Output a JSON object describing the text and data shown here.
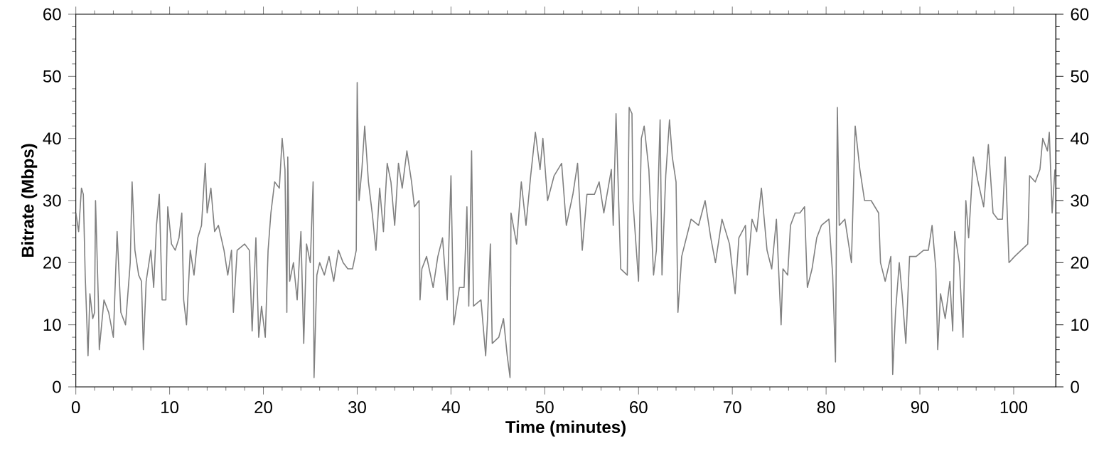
{
  "chart_data": {
    "type": "line",
    "xlabel": "Time (minutes)",
    "ylabel": "Bitrate (Mbps)",
    "xlim": [
      0,
      104.5
    ],
    "xticks": [
      0,
      10,
      20,
      30,
      40,
      50,
      60,
      70,
      80,
      90,
      100
    ],
    "ylim": [
      0,
      60
    ],
    "yticks": [
      0,
      10,
      20,
      30,
      40,
      50,
      60
    ],
    "y2lim": [
      0,
      60
    ],
    "y2ticks": [
      0,
      10,
      20,
      30,
      40,
      50,
      60
    ],
    "grid": false,
    "legend": false,
    "marker": "none",
    "line_style": "solid",
    "series": [
      {
        "color": "#808080",
        "x": [
          0,
          0.3,
          0.6,
          0.8,
          1.0,
          1.3,
          1.5,
          1.8,
          2.0,
          2.1,
          2.4,
          2.5,
          3.0,
          3.5,
          4.0,
          4.4,
          4.8,
          5.3,
          5.8,
          6.0,
          6.3,
          6.7,
          7.0,
          7.2,
          7.5,
          8.0,
          8.3,
          8.6,
          8.9,
          9.2,
          9.6,
          9.8,
          10.2,
          10.6,
          11.0,
          11.3,
          11.5,
          11.8,
          12.2,
          12.6,
          13.0,
          13.4,
          13.8,
          14.0,
          14.4,
          14.8,
          15.2,
          15.8,
          16.2,
          16.6,
          16.8,
          17.2,
          18.0,
          18.5,
          18.8,
          19.2,
          19.5,
          19.8,
          20.2,
          20.5,
          20.8,
          21.2,
          21.7,
          22.0,
          22.3,
          22.5,
          22.6,
          22.8,
          23.2,
          23.6,
          24.0,
          24.3,
          24.6,
          25.0,
          25.3,
          25.4,
          25.7,
          26.0,
          26.5,
          27.0,
          27.5,
          28.0,
          28.5,
          29.0,
          29.5,
          29.9,
          30.0,
          30.2,
          30.5,
          30.8,
          31.2,
          31.6,
          32.0,
          32.4,
          32.8,
          33.2,
          33.6,
          34.0,
          34.4,
          34.8,
          35.3,
          35.8,
          36.1,
          36.6,
          36.7,
          36.9,
          37.4,
          38.1,
          38.6,
          39.1,
          39.6,
          40.0,
          40.3,
          40.9,
          41.4,
          41.7,
          41.9,
          42.2,
          42.4,
          43.2,
          43.7,
          43.9,
          44.2,
          44.4,
          45.1,
          45.6,
          46.0,
          46.3,
          46.4,
          47.0,
          47.5,
          48.0,
          48.5,
          49.0,
          49.5,
          49.8,
          50.3,
          51.0,
          51.8,
          52.3,
          53.0,
          53.5,
          54.0,
          54.5,
          55.3,
          55.8,
          56.3,
          57.1,
          57.3,
          57.6,
          57.8,
          58.1,
          58.8,
          59.0,
          59.3,
          59.4,
          60.0,
          60.3,
          60.6,
          61.1,
          61.6,
          61.9,
          62.3,
          62.5,
          62.9,
          63.3,
          63.6,
          64.0,
          64.2,
          64.6,
          65.1,
          65.6,
          66.4,
          67.1,
          67.7,
          68.2,
          68.9,
          69.7,
          70.3,
          70.7,
          71.4,
          71.6,
          72.1,
          72.6,
          73.1,
          73.7,
          74.2,
          74.7,
          75.2,
          75.4,
          75.9,
          76.2,
          76.7,
          77.2,
          77.7,
          78.0,
          78.5,
          79.0,
          79.5,
          80.3,
          80.7,
          81.0,
          81.2,
          81.4,
          82.0,
          82.7,
          83.1,
          83.6,
          84.1,
          84.8,
          85.6,
          85.8,
          86.3,
          86.9,
          87.1,
          87.4,
          87.8,
          88.1,
          88.5,
          88.9,
          89.6,
          90.4,
          90.9,
          91.3,
          91.7,
          91.9,
          92.2,
          92.7,
          93.2,
          93.5,
          93.7,
          94.2,
          94.6,
          94.9,
          95.2,
          95.7,
          96.2,
          96.8,
          97.3,
          97.8,
          98.3,
          98.8,
          99.1,
          99.5,
          100.1,
          100.8,
          101.5,
          101.7,
          102.3,
          102.8,
          103.1,
          103.6,
          103.8,
          104.1,
          104.4
        ],
        "values": [
          28,
          25,
          32,
          31,
          18,
          5,
          15,
          11,
          12,
          30,
          14,
          6,
          14,
          12,
          8,
          25,
          12,
          10,
          20,
          33,
          22,
          18,
          17,
          6,
          17,
          22,
          16,
          26,
          31,
          14,
          14,
          29,
          23,
          22,
          24,
          28,
          14,
          10,
          22,
          18,
          24,
          26,
          36,
          28,
          32,
          25,
          26,
          22,
          18,
          22,
          12,
          22,
          23,
          22,
          9,
          24,
          8,
          13,
          8,
          22,
          28,
          33,
          32,
          40,
          35,
          12,
          37,
          17,
          20,
          14,
          25,
          7,
          23,
          20,
          33,
          1.5,
          18,
          20,
          18,
          21,
          17,
          22,
          20,
          19,
          19,
          22,
          49,
          30,
          35,
          42,
          33,
          28,
          22,
          32,
          25,
          36,
          33,
          26,
          36,
          32,
          38,
          33,
          29,
          30,
          14,
          19,
          21,
          16,
          21,
          24,
          14,
          34,
          10,
          16,
          16,
          29,
          13,
          38,
          13,
          14,
          5,
          11,
          23,
          7,
          8,
          11,
          5,
          1.5,
          28,
          23,
          33,
          26,
          34,
          41,
          35,
          40,
          30,
          34,
          36,
          26,
          31,
          36,
          22,
          31,
          31,
          33,
          28,
          35,
          26,
          44,
          34,
          19,
          18,
          45,
          44,
          30,
          17,
          40,
          42,
          35,
          18,
          22,
          43,
          18,
          34,
          43,
          37,
          33,
          12,
          21,
          24,
          27,
          26,
          30,
          24,
          20,
          27,
          23,
          15,
          24,
          26,
          18,
          27,
          25,
          32,
          22,
          19,
          27,
          10,
          19,
          18,
          26,
          28,
          28,
          29,
          16,
          19,
          24,
          26,
          27,
          18,
          4,
          45,
          26,
          27,
          20,
          42,
          35,
          30,
          30,
          28,
          20,
          17,
          21,
          2,
          12,
          20,
          15,
          7,
          21,
          21,
          22,
          22,
          26,
          19,
          6,
          15,
          11,
          17,
          9,
          25,
          20,
          8,
          30,
          24,
          37,
          33,
          29,
          39,
          28,
          27,
          27,
          37,
          20,
          21,
          22,
          23,
          34,
          33,
          35,
          40,
          38,
          41,
          28,
          35
        ]
      }
    ]
  }
}
